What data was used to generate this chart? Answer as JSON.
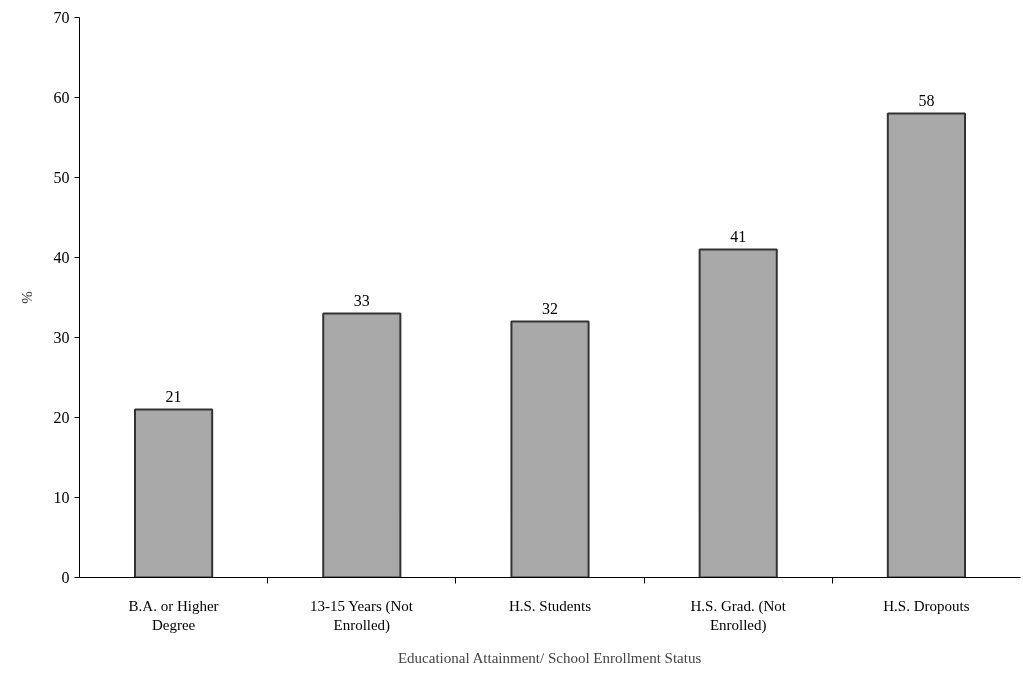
{
  "chart_data": {
    "type": "bar",
    "xlabel": "Educational Attainment/ School Enrollment Status",
    "ylabel": "%",
    "categories": [
      "B.A. or Higher Degree",
      "13-15 Years (Not Enrolled)",
      "H.S. Students",
      "H.S. Grad. (Not Enrolled)",
      "H.S. Dropouts"
    ],
    "values": [
      21,
      33,
      32,
      41,
      58
    ],
    "color": "#a8a8a8",
    "ylim": [
      0,
      70
    ],
    "yticks": [
      0,
      10,
      20,
      30,
      40,
      50,
      60,
      70
    ],
    "data_labels": true
  }
}
